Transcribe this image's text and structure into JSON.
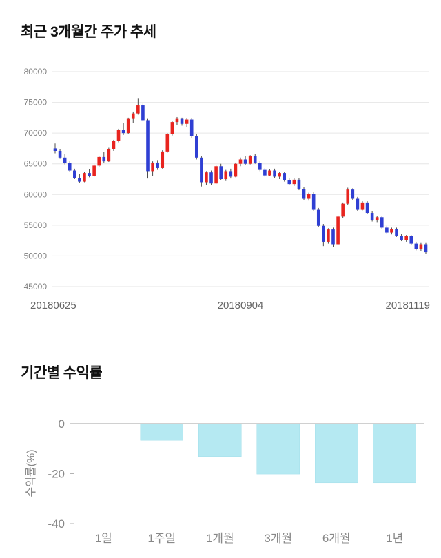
{
  "page": {
    "price_chart_title": "최근 3개월간 주가 추세",
    "returns_chart_title": "기간별 수익률"
  },
  "chart_data": [
    {
      "id": "price_trend",
      "type": "candlestick",
      "title": "최근 3개월간 주가 추세",
      "ylim": [
        45000,
        80000
      ],
      "yticks": [
        80000,
        75000,
        70000,
        65000,
        60000,
        55000,
        50000,
        45000
      ],
      "xtick_labels": [
        "20180625",
        "20180904",
        "20181119"
      ],
      "grid": true,
      "legend": "none",
      "colors": {
        "up": "#e8241f",
        "down": "#2f3fd3",
        "wick": "#4d4d4d",
        "grid": "#e6e6e6",
        "axis_text": "#808080",
        "xaxis_text": "#666666"
      },
      "candles_ohlc": [
        [
          67500,
          68300,
          66700,
          67100
        ],
        [
          67100,
          67400,
          65800,
          66000
        ],
        [
          66000,
          66600,
          64900,
          65100
        ],
        [
          65100,
          65400,
          63700,
          63900
        ],
        [
          63900,
          64200,
          62500,
          62700
        ],
        [
          62700,
          63300,
          61900,
          62100
        ],
        [
          62100,
          63700,
          62000,
          63500
        ],
        [
          63500,
          64100,
          62800,
          63000
        ],
        [
          63000,
          64900,
          62900,
          64700
        ],
        [
          64700,
          66300,
          64500,
          66100
        ],
        [
          66100,
          66900,
          65200,
          65400
        ],
        [
          65400,
          67600,
          65300,
          67400
        ],
        [
          67400,
          68900,
          67100,
          68700
        ],
        [
          68700,
          70700,
          68500,
          70500
        ],
        [
          70500,
          71700,
          69700,
          70000
        ],
        [
          70000,
          72500,
          69900,
          72300
        ],
        [
          72300,
          73500,
          71700,
          73200
        ],
        [
          73200,
          75700,
          73000,
          74500
        ],
        [
          74500,
          74800,
          71900,
          72100
        ],
        [
          72100,
          72300,
          62600,
          63800
        ],
        [
          63800,
          65400,
          63000,
          65200
        ],
        [
          65200,
          65600,
          64000,
          64300
        ],
        [
          64300,
          67200,
          64200,
          67000
        ],
        [
          67000,
          70000,
          66800,
          69800
        ],
        [
          69800,
          72000,
          69600,
          71800
        ],
        [
          71800,
          72600,
          71300,
          72300
        ],
        [
          72300,
          72500,
          71200,
          71500
        ],
        [
          71500,
          72400,
          71000,
          72200
        ],
        [
          72200,
          72400,
          69200,
          69500
        ],
        [
          69500,
          69800,
          65700,
          66000
        ],
        [
          66000,
          66200,
          61300,
          62000
        ],
        [
          62000,
          63800,
          61500,
          63600
        ],
        [
          63600,
          63900,
          61500,
          61800
        ],
        [
          61800,
          64800,
          61700,
          64600
        ],
        [
          64600,
          65000,
          62300,
          62500
        ],
        [
          62500,
          64000,
          62200,
          63800
        ],
        [
          63800,
          64200,
          62600,
          62900
        ],
        [
          62900,
          65200,
          62800,
          65000
        ],
        [
          65000,
          66000,
          64600,
          65700
        ],
        [
          65700,
          66300,
          64800,
          65000
        ],
        [
          65000,
          66400,
          64900,
          66200
        ],
        [
          66200,
          66600,
          65000,
          65100
        ],
        [
          65100,
          65400,
          63800,
          64000
        ],
        [
          64000,
          64300,
          62900,
          63100
        ],
        [
          63100,
          64100,
          63000,
          63900
        ],
        [
          63900,
          64200,
          62700,
          62900
        ],
        [
          62900,
          63700,
          62500,
          63500
        ],
        [
          63500,
          63700,
          62100,
          62300
        ],
        [
          62300,
          62600,
          61500,
          61700
        ],
        [
          61700,
          62600,
          61400,
          62400
        ],
        [
          62400,
          62700,
          60700,
          60900
        ],
        [
          60900,
          61200,
          59100,
          59300
        ],
        [
          59300,
          60300,
          59000,
          60100
        ],
        [
          60100,
          60400,
          57300,
          57500
        ],
        [
          57500,
          57800,
          54700,
          54900
        ],
        [
          54900,
          55200,
          51600,
          52300
        ],
        [
          52300,
          54500,
          52000,
          54300
        ],
        [
          54300,
          54600,
          51500,
          51900
        ],
        [
          51900,
          56600,
          51800,
          56400
        ],
        [
          56400,
          58700,
          56200,
          58500
        ],
        [
          58500,
          61100,
          58300,
          60800
        ],
        [
          60800,
          61000,
          59100,
          59300
        ],
        [
          59300,
          59600,
          57300,
          57500
        ],
        [
          57500,
          58900,
          57400,
          58700
        ],
        [
          58700,
          58900,
          56800,
          57000
        ],
        [
          57000,
          57300,
          55600,
          55800
        ],
        [
          55800,
          56500,
          55500,
          56300
        ],
        [
          56300,
          56500,
          54400,
          54600
        ],
        [
          54600,
          54900,
          53600,
          53800
        ],
        [
          53800,
          54600,
          53500,
          54400
        ],
        [
          54400,
          54600,
          53100,
          53300
        ],
        [
          53300,
          53600,
          52400,
          52600
        ],
        [
          52600,
          53400,
          52300,
          53200
        ],
        [
          53200,
          53400,
          51800,
          52000
        ],
        [
          52000,
          52300,
          50900,
          51100
        ],
        [
          51100,
          52100,
          50800,
          51900
        ],
        [
          51900,
          52100,
          50300,
          50600
        ]
      ]
    },
    {
      "id": "period_returns",
      "type": "bar",
      "title": "기간별 수익률",
      "categories": [
        "1일",
        "1주일",
        "1개월",
        "3개월",
        "6개월",
        "1년"
      ],
      "values": [
        0,
        -6.5,
        -13,
        -20,
        -23.5,
        -23.5
      ],
      "ylabel": "수익률(%)",
      "ylim": [
        -40,
        0
      ],
      "yticks": [
        0,
        -20,
        -40
      ],
      "grid": false,
      "legend": "none",
      "colors": {
        "bar": "#b5e9f2",
        "bar_edge": "#a3dfea",
        "baseline": "#b3b3b3",
        "axis_text": "#888888"
      }
    }
  ]
}
